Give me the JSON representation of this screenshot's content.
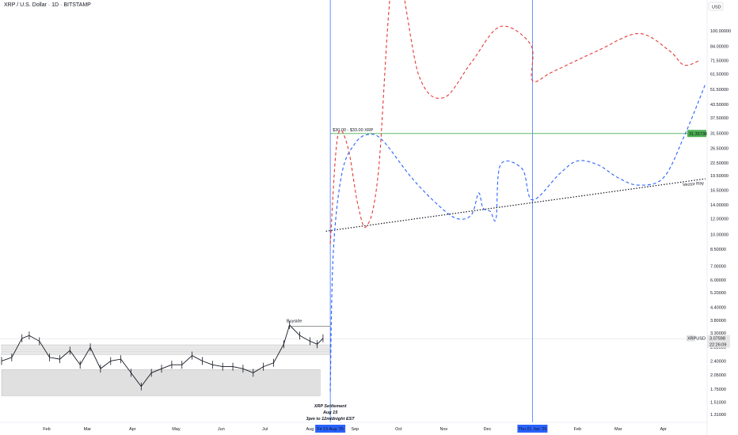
{
  "header": {
    "title": "XRP / U.S. Dollar · 1D · BITSTAMP"
  },
  "currency_button": {
    "label": "USD"
  },
  "chart_data": {
    "type": "line",
    "title": "XRP / U.S. Dollar · 1D · BITSTAMP",
    "yscale": "log",
    "ylim": [
      1.2,
      125
    ],
    "y_ticks": [
      "100.00000",
      "84.00000",
      "71.50000",
      "61.50000",
      "51.50000",
      "43.50000",
      "37.50000",
      "31.50000",
      "26.50000",
      "22.50000",
      "19.50000",
      "16.50000",
      "14.00000",
      "12.00000",
      "10.00000",
      "8.50000",
      "7.00000",
      "6.00000",
      "5.20000",
      "4.40000",
      "3.80000",
      "3.30000",
      "2.80000",
      "2.40000",
      "2.05000",
      "1.75000",
      "1.51000",
      "1.31000"
    ],
    "x_ticks": [
      "Feb",
      "Mar",
      "Apr",
      "May",
      "Jun",
      "Jul",
      "Aug",
      "Sep",
      "Oct",
      "Nov",
      "Dec",
      "Feb",
      "Mar",
      "Apr"
    ],
    "x_tick_dates": [
      "2025-02-01",
      "2025-03-01",
      "2025-04-01",
      "2025-05-01",
      "2025-06-01",
      "2025-07-01",
      "2025-08-01",
      "2025-09-01",
      "2025-10-01",
      "2025-11-01",
      "2025-12-01",
      "2026-02-01",
      "2026-03-01",
      "2026-04-01"
    ],
    "xlim": [
      "2025-01-01",
      "2026-04-30"
    ],
    "price_history": [
      {
        "x": "2025-01-01",
        "y": 2.4
      },
      {
        "x": "2025-01-08",
        "y": 2.5
      },
      {
        "x": "2025-01-15",
        "y": 3.1
      },
      {
        "x": "2025-01-20",
        "y": 3.2
      },
      {
        "x": "2025-01-27",
        "y": 3.0
      },
      {
        "x": "2025-02-03",
        "y": 2.5
      },
      {
        "x": "2025-02-10",
        "y": 2.45
      },
      {
        "x": "2025-02-17",
        "y": 2.7
      },
      {
        "x": "2025-02-24",
        "y": 2.3
      },
      {
        "x": "2025-03-03",
        "y": 2.8
      },
      {
        "x": "2025-03-10",
        "y": 2.2
      },
      {
        "x": "2025-03-17",
        "y": 2.4
      },
      {
        "x": "2025-03-24",
        "y": 2.45
      },
      {
        "x": "2025-03-31",
        "y": 2.1
      },
      {
        "x": "2025-04-07",
        "y": 1.8
      },
      {
        "x": "2025-04-14",
        "y": 2.1
      },
      {
        "x": "2025-04-21",
        "y": 2.2
      },
      {
        "x": "2025-04-28",
        "y": 2.3
      },
      {
        "x": "2025-05-05",
        "y": 2.3
      },
      {
        "x": "2025-05-12",
        "y": 2.55
      },
      {
        "x": "2025-05-19",
        "y": 2.4
      },
      {
        "x": "2025-05-26",
        "y": 2.3
      },
      {
        "x": "2025-06-02",
        "y": 2.25
      },
      {
        "x": "2025-06-09",
        "y": 2.25
      },
      {
        "x": "2025-06-16",
        "y": 2.2
      },
      {
        "x": "2025-06-23",
        "y": 2.1
      },
      {
        "x": "2025-06-30",
        "y": 2.25
      },
      {
        "x": "2025-07-07",
        "y": 2.35
      },
      {
        "x": "2025-07-14",
        "y": 2.9
      },
      {
        "x": "2025-07-18",
        "y": 3.6
      },
      {
        "x": "2025-07-25",
        "y": 3.2
      },
      {
        "x": "2025-08-01",
        "y": 3.0
      },
      {
        "x": "2025-08-06",
        "y": 2.9
      },
      {
        "x": "2025-08-10",
        "y": 3.1
      }
    ],
    "series": [
      {
        "values": [
          {
            "x": "2025-08-15",
            "y": 9.0
          },
          {
            "x": "2025-08-20",
            "y": 30.0
          },
          {
            "x": "2025-08-27",
            "y": 27.0
          },
          {
            "x": "2025-09-03",
            "y": 14.0
          },
          {
            "x": "2025-09-09",
            "y": 11.0
          },
          {
            "x": "2025-09-17",
            "y": 20.0
          },
          {
            "x": "2025-09-28",
            "y": 200.0
          },
          {
            "x": "2025-10-15",
            "y": 60.0
          },
          {
            "x": "2025-11-01",
            "y": 47.0
          },
          {
            "x": "2025-11-20",
            "y": 70.0
          },
          {
            "x": "2025-12-10",
            "y": 105.0
          },
          {
            "x": "2025-12-31",
            "y": 85.0
          },
          {
            "x": "2026-01-01",
            "y": 57.0
          },
          {
            "x": "2026-01-15",
            "y": 63.0
          },
          {
            "x": "2026-02-15",
            "y": 80.0
          },
          {
            "x": "2026-03-15",
            "y": 97.0
          },
          {
            "x": "2026-04-05",
            "y": 80.0
          },
          {
            "x": "2026-04-15",
            "y": 68.0
          },
          {
            "x": "2026-04-25",
            "y": 71.0
          }
        ]
      },
      {
        "values": [
          {
            "x": "2025-08-15",
            "y": 1.7
          },
          {
            "x": "2025-08-17",
            "y": 8.0
          },
          {
            "x": "2025-08-23",
            "y": 20.0
          },
          {
            "x": "2025-09-01",
            "y": 28.0
          },
          {
            "x": "2025-09-10",
            "y": 31.0
          },
          {
            "x": "2025-09-20",
            "y": 29.0
          },
          {
            "x": "2025-10-10",
            "y": 19.0
          },
          {
            "x": "2025-10-28",
            "y": 14.0
          },
          {
            "x": "2025-11-10",
            "y": 12.0
          },
          {
            "x": "2025-11-20",
            "y": 12.5
          },
          {
            "x": "2025-11-25",
            "y": 16.0
          },
          {
            "x": "2025-11-28",
            "y": 13.5
          },
          {
            "x": "2025-12-03",
            "y": 13.0
          },
          {
            "x": "2025-12-07",
            "y": 12.0
          },
          {
            "x": "2025-12-10",
            "y": 22.0
          },
          {
            "x": "2025-12-25",
            "y": 21.0
          },
          {
            "x": "2026-01-01",
            "y": 14.8
          },
          {
            "x": "2026-01-20",
            "y": 20.0
          },
          {
            "x": "2026-02-01",
            "y": 23.0
          },
          {
            "x": "2026-02-15",
            "y": 22.0
          },
          {
            "x": "2026-03-01",
            "y": 19.0
          },
          {
            "x": "2026-03-15",
            "y": 17.5
          },
          {
            "x": "2026-04-01",
            "y": 19.0
          },
          {
            "x": "2026-04-15",
            "y": 30.0
          },
          {
            "x": "2026-04-30",
            "y": 55.0
          }
        ]
      }
    ],
    "vector_ray": {
      "label": "Vector Ray",
      "from": {
        "x": "2025-08-12",
        "y": 10.4
      },
      "to": {
        "x": "2026-04-30",
        "y": 18.8
      }
    },
    "target_line": {
      "y": 31.35736,
      "label": "$30.00 - $33.00 XRP",
      "value_label": "31.35736"
    },
    "current_price": {
      "ticker": "XRPUSD",
      "value": "3.07598",
      "countdown": "22:26:09",
      "y": 3.076
    },
    "buyside": {
      "label": "Buyside",
      "y": 3.55,
      "from": "2025-07-17",
      "to": "2025-08-15"
    },
    "vertical_markers": [
      {
        "x": "2025-08-15",
        "label": "Fri 15 Aug '25"
      },
      {
        "x": "2026-01-01",
        "label": "Thu 01 Jan '26"
      }
    ],
    "settlement_note": [
      "XRP Settlement",
      "Aug 15",
      "3pm to 12midnight EST"
    ],
    "zones": [
      {
        "from": "2025-01-01",
        "to": "2025-08-08",
        "y_low": 1.62,
        "y_high": 2.18,
        "color": "#e0e0e0"
      },
      {
        "from": "2025-01-01",
        "to": "2025-08-15",
        "y_low": 2.72,
        "y_high": 2.88,
        "color": "#e8e8e8"
      },
      {
        "from": "2025-01-01",
        "to": "2025-08-15",
        "y_low": 2.58,
        "y_high": 2.68,
        "color": "#e8e8e8"
      }
    ],
    "colors": {
      "red_path": "#e53935",
      "blue_path": "#2962ff",
      "target": "#4caf50",
      "marker": "#2962ff",
      "candle": "#131722"
    }
  }
}
